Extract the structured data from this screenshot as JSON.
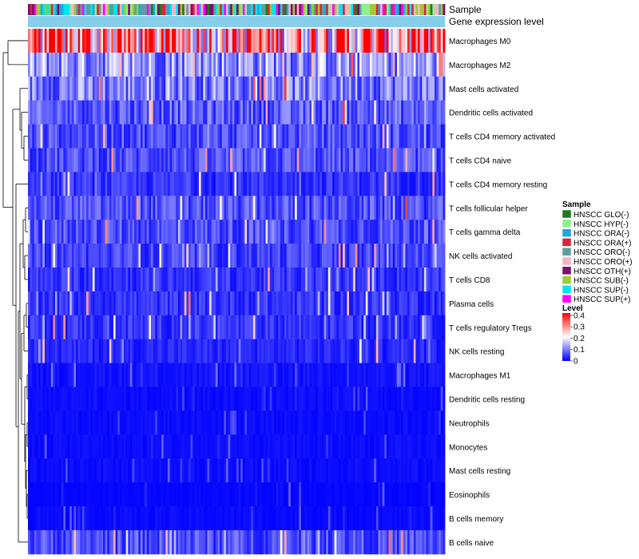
{
  "chart_data": {
    "type": "heatmap",
    "title": "",
    "annotation_tracks": [
      "Sample",
      "Gene expression level"
    ],
    "rows": [
      {
        "label": "Macrophages M0",
        "mean": 0.28
      },
      {
        "label": "Macrophages M2",
        "mean": 0.12
      },
      {
        "label": "Mast cells activated",
        "mean": 0.1
      },
      {
        "label": "Dendritic cells activated",
        "mean": 0.07
      },
      {
        "label": "T cells CD4 memory activated",
        "mean": 0.06
      },
      {
        "label": "T cells CD4 naive",
        "mean": 0.06
      },
      {
        "label": "T cells CD4 memory resting",
        "mean": 0.04
      },
      {
        "label": "T cells follicular helper",
        "mean": 0.06
      },
      {
        "label": "T cells gamma delta",
        "mean": 0.06
      },
      {
        "label": "NK cells activated",
        "mean": 0.05
      },
      {
        "label": "T cells CD8",
        "mean": 0.04
      },
      {
        "label": "Plasma cells",
        "mean": 0.04
      },
      {
        "label": "T cells regulatory  Tregs",
        "mean": 0.04
      },
      {
        "label": "NK cells resting",
        "mean": 0.03
      },
      {
        "label": "Macrophages M1",
        "mean": 0.015
      },
      {
        "label": "Dendritic cells resting",
        "mean": 0.01
      },
      {
        "label": "Neutrophils",
        "mean": 0.01
      },
      {
        "label": "Monocytes",
        "mean": 0.01
      },
      {
        "label": "Mast cells resting",
        "mean": 0.01
      },
      {
        "label": "Eosinophils",
        "mean": 0.005
      },
      {
        "label": "B cells memory",
        "mean": 0.008
      },
      {
        "label": "B cells naive",
        "mean": 0.06
      }
    ],
    "n_samples": 200,
    "legend": {
      "sample_title": "Sample",
      "samples": [
        {
          "label": "HNSCC GLO(-)",
          "color": "#1f7a1f"
        },
        {
          "label": "HNSCC HYP(-)",
          "color": "#90ee90"
        },
        {
          "label": "HNSCC ORA(-)",
          "color": "#1ea8df"
        },
        {
          "label": "HNSCC ORA(+)",
          "color": "#d7263d"
        },
        {
          "label": "HNSCC ORO(-)",
          "color": "#5f9ea0"
        },
        {
          "label": "HNSCC ORO(+)",
          "color": "#f4b6c2"
        },
        {
          "label": "HNSCC OTH(+)",
          "color": "#7b0f6a"
        },
        {
          "label": "HNSCC SUB(-)",
          "color": "#9acd32"
        },
        {
          "label": "HNSCC SUP(-)",
          "color": "#00e5ee"
        },
        {
          "label": "HNSCC SUP(+)",
          "color": "#ff00ff"
        }
      ],
      "level_title": "Level",
      "level_ticks": [
        0.4,
        0.3,
        0.2,
        0.1,
        0
      ],
      "level_range": [
        0,
        0.4
      ],
      "level_colors": [
        "#0000ff",
        "#ffffff",
        "#ff0000"
      ]
    },
    "expression_bar_color": "#87ceeb"
  }
}
